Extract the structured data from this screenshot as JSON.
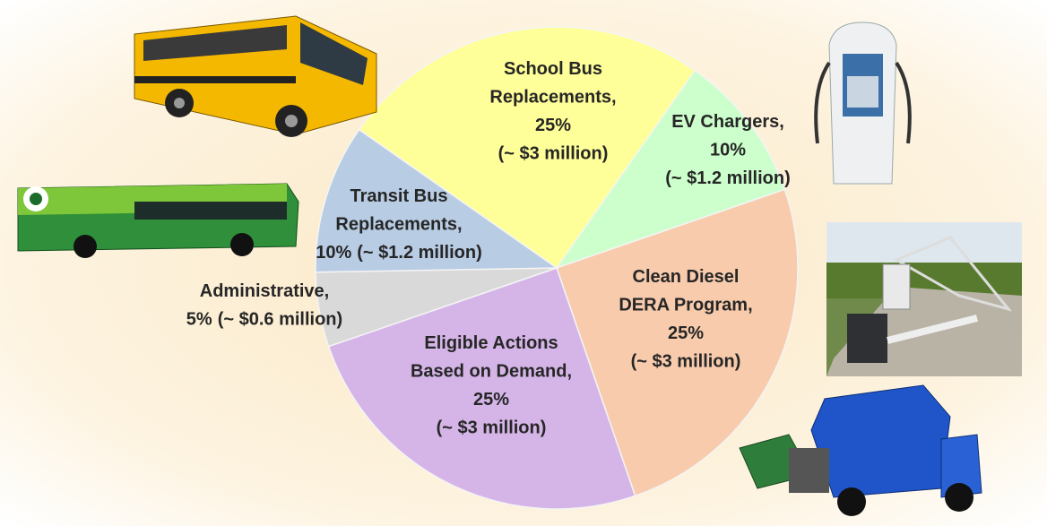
{
  "chart_data": {
    "type": "pie",
    "categories": [
      [
        "School Bus",
        "Replacements,"
      ],
      [
        "EV Chargers,"
      ],
      [
        "Clean Diesel",
        "DERA Program,"
      ],
      [
        "Eligible Actions",
        "Based on Demand,"
      ],
      [
        "Administrative,"
      ],
      [
        "Transit Bus",
        "Replacements,"
      ]
    ],
    "values": [
      25,
      10,
      25,
      25,
      5,
      10
    ],
    "value_labels": [
      "25%",
      "10%",
      "25%",
      "25%",
      "5%",
      "10%"
    ],
    "amounts": [
      "(~ $3 million)",
      "(~ $1.2 million)",
      "(~ $3 million)",
      "(~ $3 million)",
      "(~ $0.6 million)",
      "(~ $1.2 million)"
    ],
    "colors": [
      "#ffff99",
      "#ccffcc",
      "#f8cbad",
      "#d5b5e8",
      "#d9d9d9",
      "#b8cce4"
    ]
  }
}
